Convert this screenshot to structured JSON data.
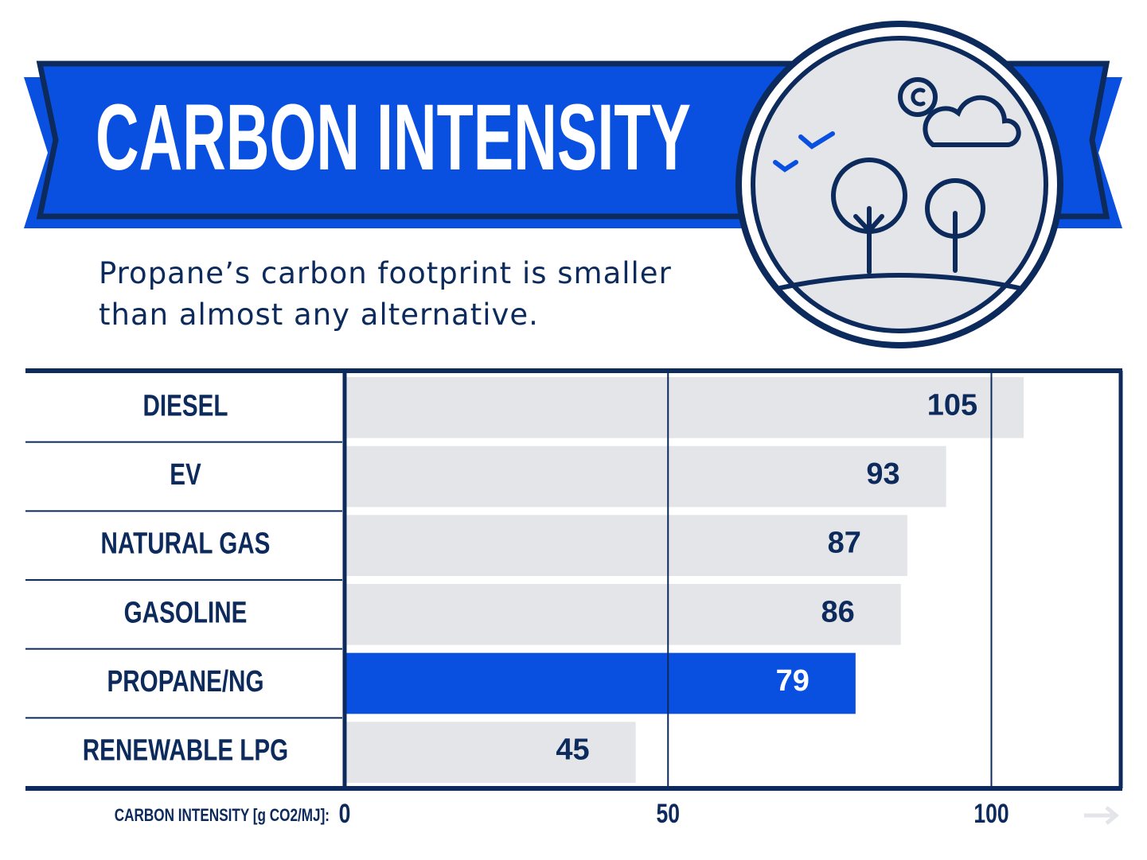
{
  "chart_data": {
    "type": "bar",
    "orientation": "horizontal",
    "title": "CARBON INTENSITY",
    "subtitle": "Propane’s carbon footprint is smaller than almost any alternative.",
    "x_label": "CARBON INTENSITY [g CO2/MJ]:",
    "categories": [
      "DIESEL",
      "EV",
      "NATURAL GAS",
      "GASOLINE",
      "PROPANE/NG",
      "RENEWABLE LPG"
    ],
    "values": [
      105,
      93,
      87,
      86,
      79,
      45
    ],
    "colors": [
      "#e4e5e8",
      "#e4e5e8",
      "#e4e5e8",
      "#e4e5e8",
      "#0a50e0",
      "#e4e5e8"
    ],
    "xlim": [
      0,
      120
    ],
    "xticks": [
      0,
      50,
      100
    ],
    "grid": true
  }
}
